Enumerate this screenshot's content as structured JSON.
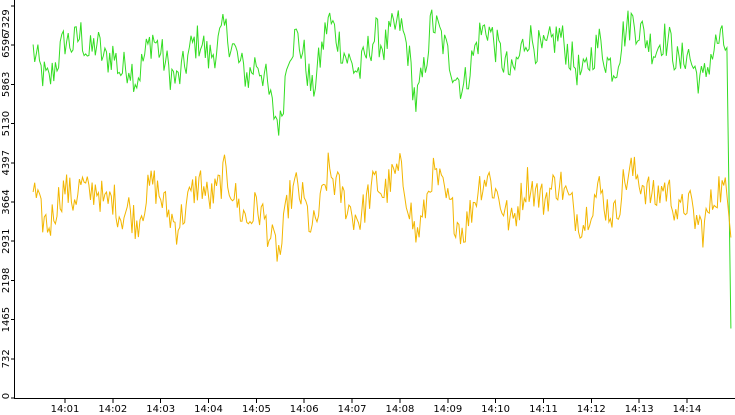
{
  "chart_data": {
    "type": "line",
    "title": "",
    "xlabel": "",
    "ylabel": "",
    "ylim": [
      0,
      7329
    ],
    "y_ticks": [
      0,
      732,
      1465,
      2198,
      2931,
      3664,
      4397,
      5130,
      5863,
      6596,
      7329
    ],
    "y_tick_labels": [
      "0",
      "732",
      "1465",
      "2198",
      "2931",
      "3664",
      "4397",
      "5130",
      "5863",
      "6596",
      "7329"
    ],
    "x_range_minutes": [
      "14:00:20",
      "14:14:55"
    ],
    "x_tick_labels": [
      "14:01",
      "14:02",
      "14:03",
      "14:04",
      "14:05",
      "14:06",
      "14:07",
      "14:08",
      "14:09",
      "14:10",
      "14:11",
      "14:12",
      "14:13",
      "14:14"
    ],
    "grid": false,
    "legend": "none",
    "series": [
      {
        "color": "#33dd22",
        "values": [
          {
            "t": "14:00:20",
            "v": 6500
          },
          {
            "t": "14:00:30",
            "v": 6100
          },
          {
            "t": "14:00:40",
            "v": 5900
          },
          {
            "t": "14:00:50",
            "v": 6300
          },
          {
            "t": "14:01:00",
            "v": 6700
          },
          {
            "t": "14:01:10",
            "v": 6600
          },
          {
            "t": "14:01:20",
            "v": 6800
          },
          {
            "t": "14:01:30",
            "v": 6400
          },
          {
            "t": "14:01:40",
            "v": 6650
          },
          {
            "t": "14:01:50",
            "v": 6300
          },
          {
            "t": "14:02:00",
            "v": 6450
          },
          {
            "t": "14:02:10",
            "v": 6100
          },
          {
            "t": "14:02:20",
            "v": 6250
          },
          {
            "t": "14:02:30",
            "v": 5950
          },
          {
            "t": "14:02:40",
            "v": 6400
          },
          {
            "t": "14:02:50",
            "v": 6750
          },
          {
            "t": "14:03:00",
            "v": 6450
          },
          {
            "t": "14:03:10",
            "v": 6150
          },
          {
            "t": "14:03:20",
            "v": 5900
          },
          {
            "t": "14:03:30",
            "v": 6200
          },
          {
            "t": "14:03:40",
            "v": 6600
          },
          {
            "t": "14:03:50",
            "v": 6700
          },
          {
            "t": "14:04:00",
            "v": 6350
          },
          {
            "t": "14:04:10",
            "v": 6550
          },
          {
            "t": "14:04:20",
            "v": 6900
          },
          {
            "t": "14:04:30",
            "v": 6600
          },
          {
            "t": "14:04:40",
            "v": 6200
          },
          {
            "t": "14:04:50",
            "v": 6000
          },
          {
            "t": "14:05:00",
            "v": 6300
          },
          {
            "t": "14:05:10",
            "v": 6050
          },
          {
            "t": "14:05:20",
            "v": 5400
          },
          {
            "t": "14:05:30",
            "v": 5100
          },
          {
            "t": "14:05:40",
            "v": 6500
          },
          {
            "t": "14:05:50",
            "v": 6750
          },
          {
            "t": "14:06:00",
            "v": 6400
          },
          {
            "t": "14:06:10",
            "v": 5700
          },
          {
            "t": "14:06:20",
            "v": 6350
          },
          {
            "t": "14:06:30",
            "v": 7100
          },
          {
            "t": "14:06:40",
            "v": 6800
          },
          {
            "t": "14:06:50",
            "v": 6450
          },
          {
            "t": "14:07:00",
            "v": 6200
          },
          {
            "t": "14:07:10",
            "v": 6100
          },
          {
            "t": "14:07:20",
            "v": 6500
          },
          {
            "t": "14:07:30",
            "v": 6800
          },
          {
            "t": "14:07:40",
            "v": 6550
          },
          {
            "t": "14:07:50",
            "v": 6850
          },
          {
            "t": "14:08:00",
            "v": 7000
          },
          {
            "t": "14:08:10",
            "v": 6500
          },
          {
            "t": "14:08:20",
            "v": 5500
          },
          {
            "t": "14:08:30",
            "v": 6100
          },
          {
            "t": "14:08:40",
            "v": 7050
          },
          {
            "t": "14:08:50",
            "v": 6800
          },
          {
            "t": "14:09:00",
            "v": 6400
          },
          {
            "t": "14:09:10",
            "v": 6050
          },
          {
            "t": "14:09:20",
            "v": 5800
          },
          {
            "t": "14:09:30",
            "v": 6300
          },
          {
            "t": "14:09:40",
            "v": 6800
          },
          {
            "t": "14:09:50",
            "v": 6950
          },
          {
            "t": "14:10:00",
            "v": 6600
          },
          {
            "t": "14:10:10",
            "v": 6300
          },
          {
            "t": "14:10:20",
            "v": 6000
          },
          {
            "t": "14:10:30",
            "v": 6400
          },
          {
            "t": "14:10:40",
            "v": 6800
          },
          {
            "t": "14:10:50",
            "v": 6600
          },
          {
            "t": "14:11:00",
            "v": 6450
          },
          {
            "t": "14:11:10",
            "v": 6650
          },
          {
            "t": "14:11:20",
            "v": 6800
          },
          {
            "t": "14:11:30",
            "v": 6500
          },
          {
            "t": "14:11:40",
            "v": 6200
          },
          {
            "t": "14:11:50",
            "v": 6000
          },
          {
            "t": "14:12:00",
            "v": 6400
          },
          {
            "t": "14:12:10",
            "v": 6650
          },
          {
            "t": "14:12:20",
            "v": 6300
          },
          {
            "t": "14:12:30",
            "v": 6150
          },
          {
            "t": "14:12:40",
            "v": 6800
          },
          {
            "t": "14:12:50",
            "v": 7050
          },
          {
            "t": "14:13:00",
            "v": 6900
          },
          {
            "t": "14:13:10",
            "v": 6700
          },
          {
            "t": "14:13:20",
            "v": 6500
          },
          {
            "t": "14:13:30",
            "v": 6750
          },
          {
            "t": "14:13:40",
            "v": 6600
          },
          {
            "t": "14:13:50",
            "v": 6200
          },
          {
            "t": "14:14:00",
            "v": 6500
          },
          {
            "t": "14:14:10",
            "v": 6100
          },
          {
            "t": "14:14:20",
            "v": 5900
          },
          {
            "t": "14:14:30",
            "v": 6400
          },
          {
            "t": "14:14:40",
            "v": 6700
          },
          {
            "t": "14:14:50",
            "v": 6550
          },
          {
            "t": "14:14:55",
            "v": 1300
          }
        ]
      },
      {
        "color": "#f2b600",
        "values": [
          {
            "t": "14:00:20",
            "v": 3900
          },
          {
            "t": "14:00:30",
            "v": 3400
          },
          {
            "t": "14:00:40",
            "v": 3200
          },
          {
            "t": "14:00:50",
            "v": 3650
          },
          {
            "t": "14:01:00",
            "v": 3950
          },
          {
            "t": "14:01:10",
            "v": 3700
          },
          {
            "t": "14:01:20",
            "v": 4000
          },
          {
            "t": "14:01:30",
            "v": 3800
          },
          {
            "t": "14:01:40",
            "v": 3950
          },
          {
            "t": "14:01:50",
            "v": 3600
          },
          {
            "t": "14:02:00",
            "v": 3750
          },
          {
            "t": "14:02:10",
            "v": 3400
          },
          {
            "t": "14:02:20",
            "v": 3550
          },
          {
            "t": "14:02:30",
            "v": 3250
          },
          {
            "t": "14:02:40",
            "v": 3700
          },
          {
            "t": "14:02:50",
            "v": 4050
          },
          {
            "t": "14:03:00",
            "v": 3750
          },
          {
            "t": "14:03:10",
            "v": 3450
          },
          {
            "t": "14:03:20",
            "v": 3200
          },
          {
            "t": "14:03:30",
            "v": 3500
          },
          {
            "t": "14:03:40",
            "v": 3850
          },
          {
            "t": "14:03:50",
            "v": 4050
          },
          {
            "t": "14:04:00",
            "v": 3700
          },
          {
            "t": "14:04:10",
            "v": 3850
          },
          {
            "t": "14:04:20",
            "v": 4200
          },
          {
            "t": "14:04:30",
            "v": 3900
          },
          {
            "t": "14:04:40",
            "v": 3500
          },
          {
            "t": "14:04:50",
            "v": 3300
          },
          {
            "t": "14:05:00",
            "v": 3600
          },
          {
            "t": "14:05:10",
            "v": 3350
          },
          {
            "t": "14:05:20",
            "v": 2900
          },
          {
            "t": "14:05:30",
            "v": 2700
          },
          {
            "t": "14:05:40",
            "v": 3700
          },
          {
            "t": "14:05:50",
            "v": 3950
          },
          {
            "t": "14:06:00",
            "v": 3650
          },
          {
            "t": "14:06:10",
            "v": 3100
          },
          {
            "t": "14:06:20",
            "v": 3550
          },
          {
            "t": "14:06:30",
            "v": 4250
          },
          {
            "t": "14:06:40",
            "v": 4000
          },
          {
            "t": "14:06:50",
            "v": 3700
          },
          {
            "t": "14:07:00",
            "v": 3450
          },
          {
            "t": "14:07:10",
            "v": 3350
          },
          {
            "t": "14:07:20",
            "v": 3750
          },
          {
            "t": "14:07:30",
            "v": 4050
          },
          {
            "t": "14:07:40",
            "v": 3800
          },
          {
            "t": "14:07:50",
            "v": 4100
          },
          {
            "t": "14:08:00",
            "v": 4250
          },
          {
            "t": "14:08:10",
            "v": 3750
          },
          {
            "t": "14:08:20",
            "v": 3000
          },
          {
            "t": "14:08:30",
            "v": 3400
          },
          {
            "t": "14:08:40",
            "v": 4200
          },
          {
            "t": "14:08:50",
            "v": 4000
          },
          {
            "t": "14:09:00",
            "v": 3650
          },
          {
            "t": "14:09:10",
            "v": 3350
          },
          {
            "t": "14:09:20",
            "v": 3100
          },
          {
            "t": "14:09:30",
            "v": 3550
          },
          {
            "t": "14:09:40",
            "v": 4000
          },
          {
            "t": "14:09:50",
            "v": 4150
          },
          {
            "t": "14:10:00",
            "v": 3850
          },
          {
            "t": "14:10:10",
            "v": 3550
          },
          {
            "t": "14:10:20",
            "v": 3250
          },
          {
            "t": "14:10:30",
            "v": 3650
          },
          {
            "t": "14:10:40",
            "v": 4050
          },
          {
            "t": "14:10:50",
            "v": 3850
          },
          {
            "t": "14:11:00",
            "v": 3700
          },
          {
            "t": "14:11:10",
            "v": 3900
          },
          {
            "t": "14:11:20",
            "v": 4050
          },
          {
            "t": "14:11:30",
            "v": 3750
          },
          {
            "t": "14:11:40",
            "v": 3450
          },
          {
            "t": "14:11:50",
            "v": 3250
          },
          {
            "t": "14:12:00",
            "v": 3650
          },
          {
            "t": "14:12:10",
            "v": 3900
          },
          {
            "t": "14:12:20",
            "v": 3550
          },
          {
            "t": "14:12:30",
            "v": 3400
          },
          {
            "t": "14:12:40",
            "v": 4000
          },
          {
            "t": "14:12:50",
            "v": 4250
          },
          {
            "t": "14:13:00",
            "v": 4100
          },
          {
            "t": "14:13:10",
            "v": 3900
          },
          {
            "t": "14:13:20",
            "v": 3700
          },
          {
            "t": "14:13:30",
            "v": 3950
          },
          {
            "t": "14:13:40",
            "v": 3800
          },
          {
            "t": "14:13:50",
            "v": 3400
          },
          {
            "t": "14:14:00",
            "v": 3700
          },
          {
            "t": "14:14:10",
            "v": 3350
          },
          {
            "t": "14:14:20",
            "v": 3150
          },
          {
            "t": "14:14:30",
            "v": 3600
          },
          {
            "t": "14:14:40",
            "v": 3950
          },
          {
            "t": "14:14:50",
            "v": 3800
          },
          {
            "t": "14:14:55",
            "v": 3000
          }
        ]
      }
    ]
  }
}
